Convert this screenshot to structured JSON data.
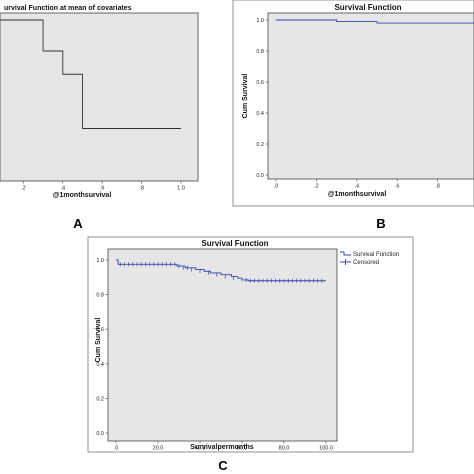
{
  "chart_data": [
    {
      "type": "line",
      "panel": "A",
      "title": "urvival Function at mean of covariates",
      "xlabel": "@1monthsurvival",
      "ylabel": "",
      "xlim": [
        0.0,
        1.0
      ],
      "ylim": [
        0.0,
        1.0
      ],
      "x_ticks": [
        ".2",
        ".4",
        ".6",
        ".8",
        "1.0"
      ],
      "y_ticks": [],
      "step_style": "step-after",
      "series": [
        {
          "x": [
            0.0,
            0.3,
            0.4,
            0.5,
            1.0
          ],
          "y": [
            1.0,
            0.8,
            0.65,
            0.3,
            0.3
          ]
        }
      ],
      "plot_bg": "#e6e6e6",
      "line_color": "#333333"
    },
    {
      "type": "line",
      "panel": "B",
      "title": "Survival Function",
      "xlabel": "@1monthsurvival",
      "ylabel": "Cum Survival",
      "xlim": [
        0.0,
        1.0
      ],
      "ylim": [
        0.0,
        1.0
      ],
      "x_ticks": [
        ".0",
        ".2",
        ".4",
        ".6",
        ".8"
      ],
      "y_ticks": [
        "0.0",
        "0.2",
        "0.4",
        "0.6",
        "0.8",
        "1.0"
      ],
      "step_style": "step-after",
      "series": [
        {
          "x": [
            0.0,
            0.3,
            0.5,
            1.0
          ],
          "y": [
            1.0,
            0.99,
            0.98,
            0.98
          ]
        }
      ],
      "plot_bg": "#e6e6e6",
      "line_color": "#3344aa"
    },
    {
      "type": "line",
      "panel": "C",
      "title": "Survival Function",
      "xlabel": "Survivalpermonths",
      "ylabel": "Cum Survival",
      "xlim": [
        0,
        100
      ],
      "ylim": [
        0.0,
        1.0
      ],
      "x_ticks": [
        ".0",
        "20.0",
        "40.0",
        "60.0",
        "80.0",
        "100.0"
      ],
      "y_ticks": [
        "0.0",
        "0.2",
        "0.4",
        "0.6",
        "0.8",
        "1.0"
      ],
      "step_style": "step-after",
      "legend": {
        "position": "top-right",
        "entries": [
          "Survival Function",
          "Censored"
        ]
      },
      "series": [
        {
          "name": "Survival Function",
          "x": [
            0,
            1,
            27,
            29,
            33,
            38,
            42,
            45,
            50,
            55,
            58,
            60,
            63,
            100
          ],
          "y": [
            1.0,
            0.975,
            0.975,
            0.965,
            0.955,
            0.945,
            0.935,
            0.925,
            0.915,
            0.905,
            0.895,
            0.885,
            0.88,
            0.88
          ]
        },
        {
          "name": "Censored",
          "x": [
            2,
            4,
            6,
            8,
            10,
            12,
            14,
            16,
            18,
            20,
            22,
            24,
            26,
            28,
            30,
            32,
            34,
            36,
            40,
            44,
            48,
            52,
            56,
            62,
            64,
            66,
            68,
            70,
            72,
            74,
            76,
            78,
            80,
            82,
            84,
            86,
            88,
            90,
            92,
            94,
            96,
            98
          ],
          "y": [
            0.975,
            0.975,
            0.975,
            0.975,
            0.975,
            0.975,
            0.975,
            0.975,
            0.975,
            0.975,
            0.975,
            0.975,
            0.975,
            0.975,
            0.965,
            0.955,
            0.955,
            0.945,
            0.935,
            0.925,
            0.915,
            0.905,
            0.895,
            0.885,
            0.88,
            0.88,
            0.88,
            0.88,
            0.88,
            0.88,
            0.88,
            0.88,
            0.88,
            0.88,
            0.88,
            0.88,
            0.88,
            0.88,
            0.88,
            0.88,
            0.88,
            0.88
          ]
        }
      ],
      "plot_bg": "#e6e6e6",
      "line_color": "#3344aa"
    }
  ]
}
